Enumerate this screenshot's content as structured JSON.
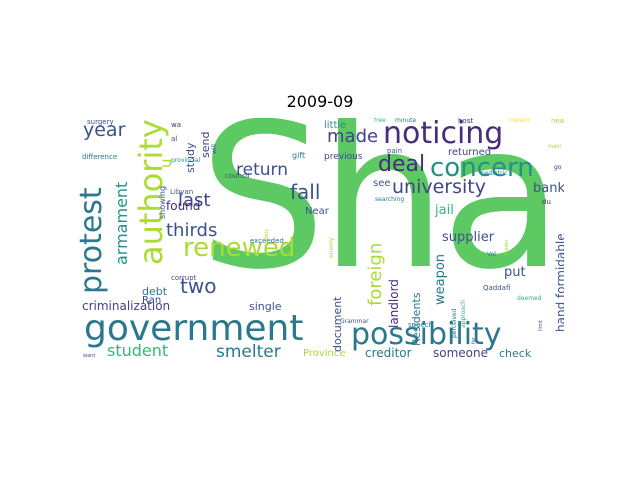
{
  "title": "2009-09",
  "words": {
    "big": "Sha",
    "w01": "government",
    "w02": "noticing",
    "w03": "concern",
    "w04": "possibility",
    "w05": "renewed",
    "w06": "authority",
    "w07": "protest",
    "w08": "university",
    "w09": "thirds",
    "w10": "return",
    "w11": "fall",
    "w12": "deal",
    "w13": "year",
    "w14": "made",
    "w15": "last",
    "w16": "two",
    "w17": "student",
    "w18": "smelter",
    "w19": "foreign",
    "w20": "armament",
    "w21": "criminalization",
    "w22": "supplier",
    "w23": "bank",
    "w24": "jail",
    "w25": "hand formidable",
    "w26": "weapon",
    "w27": "landlord",
    "w28": "Residents",
    "w29": "creditor",
    "w30": "someone",
    "w31": "check",
    "w32": "put",
    "w33": "document",
    "w34": "say",
    "w35": "study",
    "w36": "send",
    "w37": "found",
    "w38": "debt",
    "w39": "Ran",
    "w40": "little",
    "w41": "previous",
    "w42": "returned",
    "w43": "u",
    "w44": "single",
    "w45": "Province",
    "w46": "see",
    "w47": "Near",
    "w48": "showing",
    "w49": "Libyan",
    "w50": "gift",
    "w51": "host",
    "w52": "minute",
    "w53": "free",
    "w54": "pain",
    "w55": "toward",
    "w56": "new",
    "w57": "Habit",
    "w58": "surgery",
    "w59": "difference",
    "w60": "want",
    "w61": "Qaddafi",
    "w62": "Grammar",
    "w63": "speech",
    "w64": "pediatric",
    "w65": "searching",
    "w66": "exceeded",
    "w67": "corrupt",
    "w68": "council",
    "w69": "provincial",
    "w70": "wa",
    "w71": "al",
    "w72": "Vol",
    "w73": "du",
    "w74": "go",
    "w75": "deemed",
    "w76": "leader",
    "w77": "approach",
    "w78": "perceived",
    "w79": "enemy",
    "w80": "widely",
    "w81": "limit",
    "w82": "far",
    "w83": "will"
  },
  "colors": {
    "background": "#ffffff",
    "green_light": "#5dc963",
    "teal": "#21918c",
    "teal_mid": "#2a788e",
    "blue_dark": "#3b528b",
    "indigo": "#414487",
    "purple_dark": "#472d7b",
    "yellow": "#fde725",
    "yellow_green": "#aadc32",
    "green": "#35b779"
  }
}
